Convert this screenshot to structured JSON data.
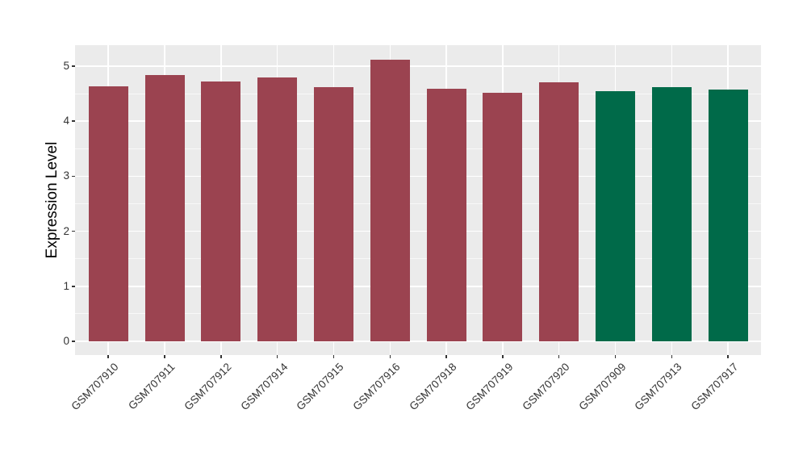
{
  "figure": {
    "background_color": "#ffffff",
    "panel_background_color": "#ebebeb",
    "grid_color": "#ffffff",
    "axis_text_color": "#333333",
    "axis_title_color": "#000000"
  },
  "chart_data": {
    "type": "bar",
    "title": "",
    "xlabel": "",
    "ylabel": "Expression Level",
    "ylim": [
      -0.26,
      5.38
    ],
    "yticks": [
      0,
      1,
      2,
      3,
      4,
      5
    ],
    "ytick_labels": [
      "0",
      "1",
      "2",
      "3",
      "4",
      "5"
    ],
    "minor_yticks": [
      0.5,
      1.5,
      2.5,
      3.5,
      4.5
    ],
    "grid": true,
    "legend_position": "none",
    "x_label_rotation_deg": 45,
    "categories": [
      "GSM707910",
      "GSM707911",
      "GSM707912",
      "GSM707914",
      "GSM707915",
      "GSM707916",
      "GSM707918",
      "GSM707919",
      "GSM707920",
      "GSM707909",
      "GSM707913",
      "GSM707917"
    ],
    "values": [
      4.63,
      4.84,
      4.72,
      4.8,
      4.62,
      5.12,
      4.59,
      4.52,
      4.7,
      4.54,
      4.62,
      4.58
    ],
    "palette": {
      "maroon": "#9b4350",
      "green": "#006a49"
    },
    "bar_color_keys": [
      "maroon",
      "maroon",
      "maroon",
      "maroon",
      "maroon",
      "maroon",
      "maroon",
      "maroon",
      "maroon",
      "green",
      "green",
      "green"
    ]
  }
}
